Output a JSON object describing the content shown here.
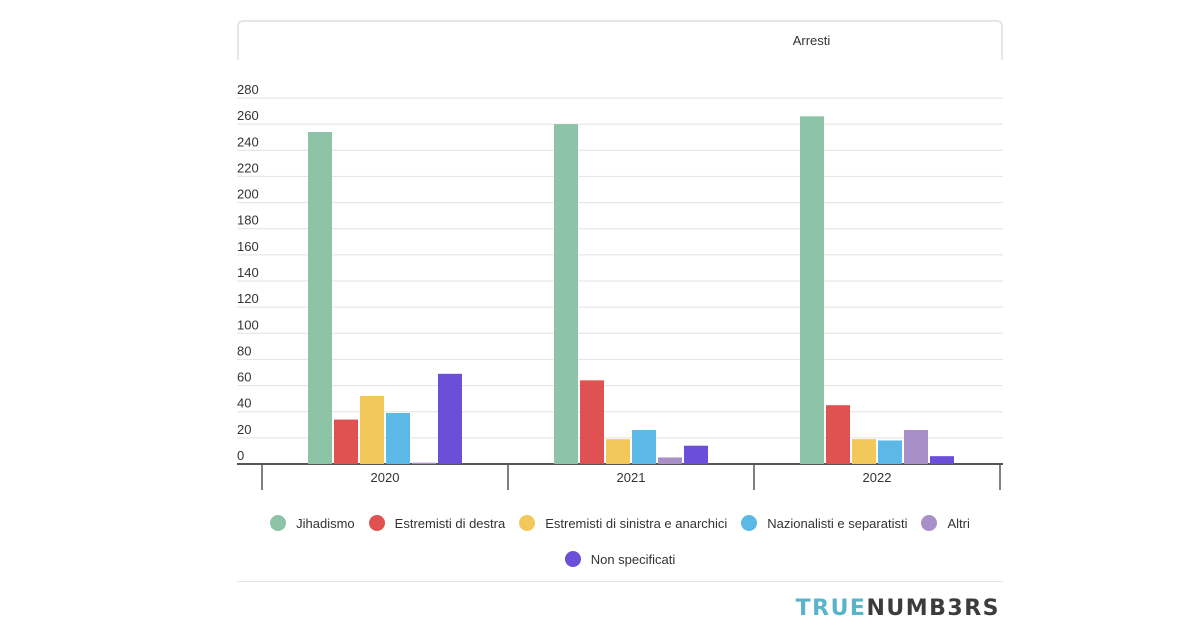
{
  "tab": {
    "active_label": "Arresti"
  },
  "chart_data": {
    "type": "bar",
    "categories": [
      "2020",
      "2021",
      "2022"
    ],
    "ylim": [
      0,
      280
    ],
    "y_ticks": [
      0,
      20,
      40,
      60,
      80,
      100,
      120,
      140,
      160,
      180,
      200,
      220,
      240,
      260,
      280
    ],
    "grid": true,
    "legend_placement": "bottom",
    "series": [
      {
        "name": "Jihadismo",
        "color": "#8dc4a7",
        "values": [
          254,
          260,
          266
        ]
      },
      {
        "name": "Estremisti di destra",
        "color": "#e05252",
        "values": [
          34,
          64,
          45
        ]
      },
      {
        "name": "Estremisti di sinistra e anarchici",
        "color": "#f2c85b",
        "values": [
          52,
          19,
          19
        ]
      },
      {
        "name": "Nazionalisti e separatisti",
        "color": "#5cb8e6",
        "values": [
          39,
          26,
          18
        ]
      },
      {
        "name": "Altri",
        "color": "#a98fc7",
        "values": [
          1,
          5,
          26
        ]
      },
      {
        "name": "Non specificati",
        "color": "#6b4fd8",
        "values": [
          69,
          14,
          6
        ]
      }
    ]
  },
  "logo": {
    "part1": "TRUE",
    "part2": "NUMB3RS"
  }
}
